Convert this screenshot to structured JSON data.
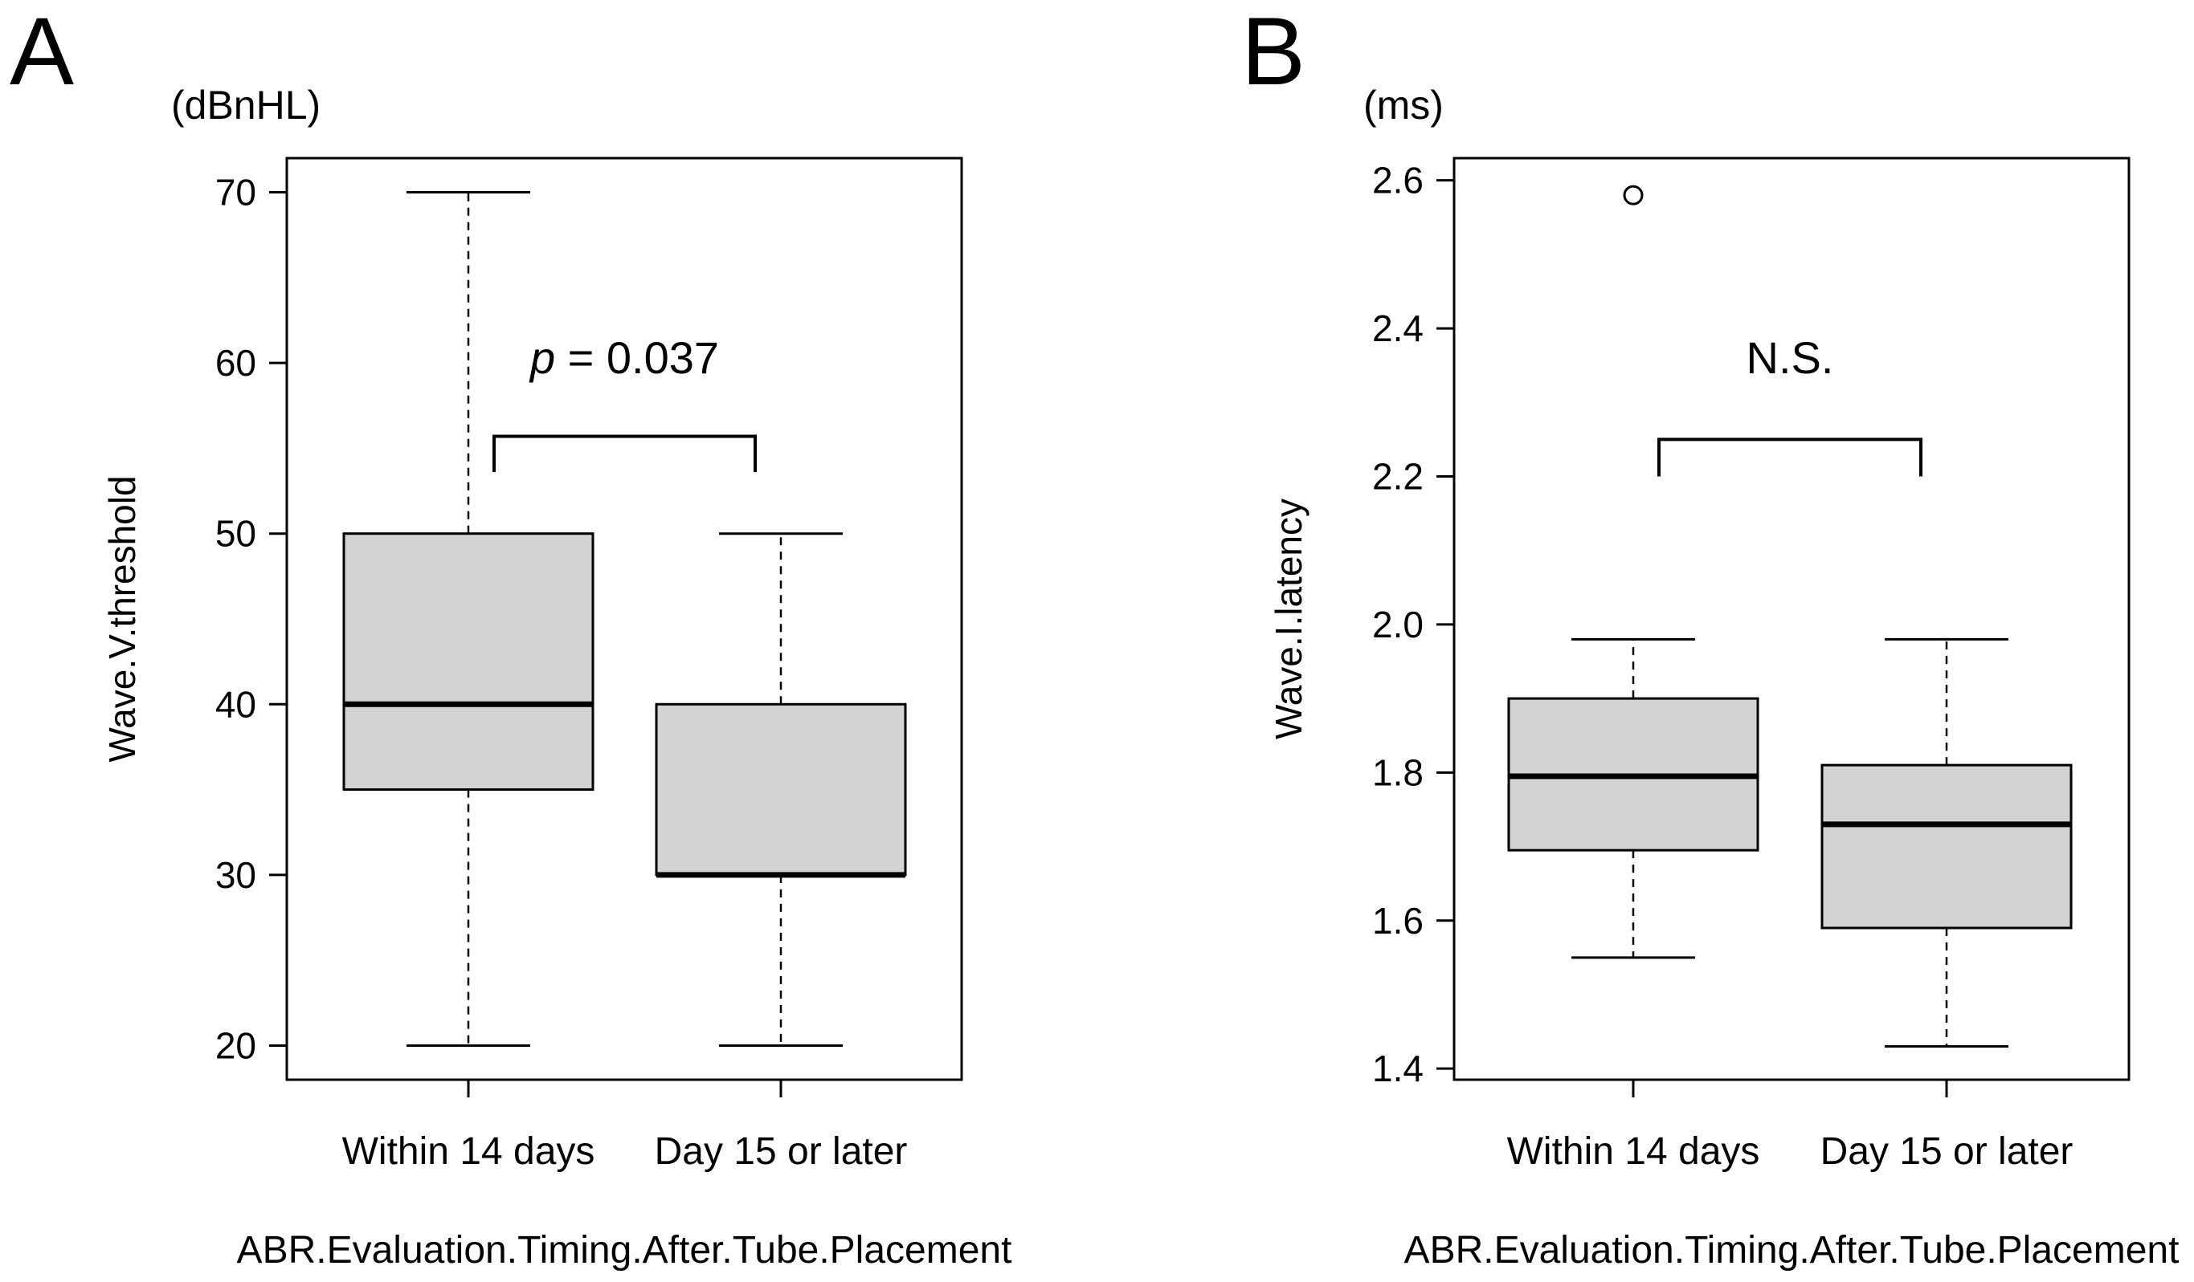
{
  "chart_data": [
    {
      "type": "boxplot",
      "panel_label": "A",
      "unit_label": "(dBnHL)",
      "ylabel": "Wave.V.threshold",
      "xlabel": "ABR.Evaluation.Timing.After.Tube.Placement",
      "ylim": [
        18,
        72
      ],
      "yticks": [
        20,
        30,
        40,
        50,
        60,
        70
      ],
      "categories": [
        "Within 14 days",
        "Day 15 or later"
      ],
      "boxes": [
        {
          "category": "Within 14 days",
          "whisker_low": 20,
          "q1": 35,
          "median": 40,
          "q3": 50,
          "whisker_high": 70,
          "outliers": []
        },
        {
          "category": "Day 15 or later",
          "whisker_low": 20,
          "q1": 30,
          "median": 30,
          "q3": 40,
          "whisker_high": 50,
          "outliers": []
        }
      ],
      "annotation": {
        "italic_part": "p",
        "text": " = 0.037"
      },
      "bracket": {
        "y": 55.7,
        "drop": 53.6
      }
    },
    {
      "type": "boxplot",
      "panel_label": "B",
      "unit_label": "(ms)",
      "ylabel": "Wave.I.latency",
      "xlabel": "ABR.Evaluation.Timing.After.Tube.Placement",
      "ylim": [
        1.385,
        2.63
      ],
      "yticks": [
        "1.4",
        "1.6",
        "1.8",
        "2.0",
        "2.2",
        "2.4",
        "2.6"
      ],
      "categories": [
        "Within 14 days",
        "Day 15 or later"
      ],
      "boxes": [
        {
          "category": "Within 14 days",
          "whisker_low": 1.55,
          "q1": 1.695,
          "median": 1.795,
          "q3": 1.9,
          "whisker_high": 1.98,
          "outliers": [
            2.58
          ]
        },
        {
          "category": "Day 15 or later",
          "whisker_low": 1.43,
          "q1": 1.59,
          "median": 1.73,
          "q3": 1.81,
          "whisker_high": 1.98,
          "outliers": []
        }
      ],
      "annotation": {
        "italic_part": "",
        "text": "N.S."
      },
      "bracket": {
        "y": 2.25,
        "drop": 2.2
      }
    }
  ]
}
